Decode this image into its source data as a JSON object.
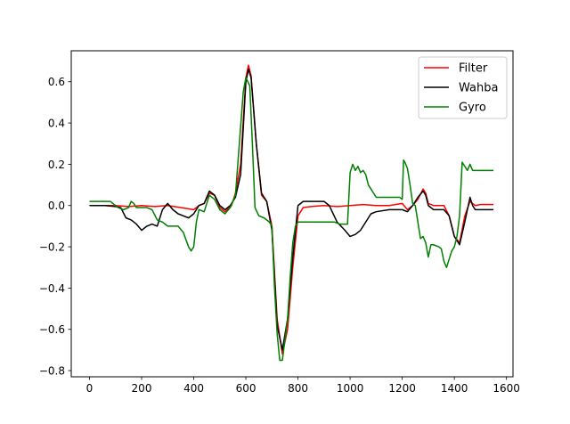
{
  "chart_data": {
    "type": "line",
    "title": "",
    "xlabel": "",
    "ylabel": "",
    "xlim": [
      -70,
      1625
    ],
    "ylim": [
      -0.83,
      0.75
    ],
    "xticks": [
      0,
      200,
      400,
      600,
      800,
      1000,
      1200,
      1400,
      1600
    ],
    "xtick_labels": [
      "0",
      "200",
      "400",
      "600",
      "800",
      "1000",
      "1200",
      "1400",
      "1600"
    ],
    "yticks": [
      -0.8,
      -0.6,
      -0.4,
      -0.2,
      0.0,
      0.2,
      0.4,
      0.6
    ],
    "ytick_labels": [
      "−0.8",
      "−0.6",
      "−0.4",
      "−0.2",
      "0.0",
      "0.2",
      "0.4",
      "0.6"
    ],
    "grid": false,
    "legend_position": "top-right",
    "series": [
      {
        "name": "Filter",
        "color": "#ff0000",
        "points": [
          [
            0,
            0.0
          ],
          [
            100,
            0.0
          ],
          [
            150,
            -0.005
          ],
          [
            200,
            0.0
          ],
          [
            250,
            -0.005
          ],
          [
            300,
            0.0
          ],
          [
            350,
            -0.01
          ],
          [
            400,
            -0.02
          ],
          [
            420,
            0.0
          ],
          [
            440,
            0.01
          ],
          [
            460,
            0.06
          ],
          [
            480,
            0.05
          ],
          [
            500,
            -0.01
          ],
          [
            520,
            -0.03
          ],
          [
            545,
            0.0
          ],
          [
            560,
            0.06
          ],
          [
            580,
            0.2
          ],
          [
            600,
            0.62
          ],
          [
            610,
            0.68
          ],
          [
            620,
            0.63
          ],
          [
            640,
            0.3
          ],
          [
            660,
            0.05
          ],
          [
            680,
            0.02
          ],
          [
            700,
            -0.1
          ],
          [
            720,
            -0.55
          ],
          [
            740,
            -0.72
          ],
          [
            760,
            -0.6
          ],
          [
            780,
            -0.3
          ],
          [
            800,
            -0.05
          ],
          [
            820,
            -0.01
          ],
          [
            850,
            -0.005
          ],
          [
            900,
            0.0
          ],
          [
            950,
            -0.005
          ],
          [
            1000,
            0.0
          ],
          [
            1050,
            0.005
          ],
          [
            1100,
            0.0
          ],
          [
            1150,
            0.0
          ],
          [
            1200,
            0.01
          ],
          [
            1220,
            -0.02
          ],
          [
            1240,
            0.0
          ],
          [
            1260,
            0.03
          ],
          [
            1280,
            0.08
          ],
          [
            1290,
            0.06
          ],
          [
            1300,
            0.01
          ],
          [
            1320,
            0.0
          ],
          [
            1340,
            0.0
          ],
          [
            1360,
            0.0
          ],
          [
            1380,
            -0.05
          ],
          [
            1400,
            -0.15
          ],
          [
            1420,
            -0.18
          ],
          [
            1440,
            -0.05
          ],
          [
            1460,
            0.02
          ],
          [
            1480,
            0.0
          ],
          [
            1500,
            0.005
          ],
          [
            1550,
            0.005
          ]
        ]
      },
      {
        "name": "Wahba",
        "color": "#000000",
        "points": [
          [
            0,
            0.0
          ],
          [
            60,
            0.0
          ],
          [
            100,
            -0.005
          ],
          [
            120,
            -0.01
          ],
          [
            140,
            -0.06
          ],
          [
            160,
            -0.07
          ],
          [
            180,
            -0.09
          ],
          [
            200,
            -0.12
          ],
          [
            220,
            -0.1
          ],
          [
            240,
            -0.09
          ],
          [
            260,
            -0.1
          ],
          [
            280,
            -0.02
          ],
          [
            300,
            0.01
          ],
          [
            320,
            -0.02
          ],
          [
            340,
            -0.04
          ],
          [
            360,
            -0.05
          ],
          [
            380,
            -0.06
          ],
          [
            400,
            -0.04
          ],
          [
            420,
            0.0
          ],
          [
            440,
            0.01
          ],
          [
            460,
            0.07
          ],
          [
            480,
            0.05
          ],
          [
            500,
            0.0
          ],
          [
            520,
            -0.02
          ],
          [
            540,
            0.0
          ],
          [
            560,
            0.04
          ],
          [
            580,
            0.15
          ],
          [
            600,
            0.6
          ],
          [
            610,
            0.66
          ],
          [
            620,
            0.62
          ],
          [
            640,
            0.3
          ],
          [
            660,
            0.06
          ],
          [
            680,
            0.02
          ],
          [
            700,
            -0.12
          ],
          [
            720,
            -0.58
          ],
          [
            740,
            -0.7
          ],
          [
            760,
            -0.55
          ],
          [
            780,
            -0.25
          ],
          [
            800,
            0.0
          ],
          [
            820,
            0.02
          ],
          [
            850,
            0.02
          ],
          [
            880,
            0.02
          ],
          [
            900,
            0.02
          ],
          [
            920,
            0.0
          ],
          [
            950,
            -0.08
          ],
          [
            980,
            -0.12
          ],
          [
            1000,
            -0.15
          ],
          [
            1020,
            -0.14
          ],
          [
            1040,
            -0.12
          ],
          [
            1060,
            -0.08
          ],
          [
            1080,
            -0.04
          ],
          [
            1100,
            -0.03
          ],
          [
            1150,
            -0.02
          ],
          [
            1200,
            -0.02
          ],
          [
            1220,
            -0.03
          ],
          [
            1240,
            0.0
          ],
          [
            1260,
            0.04
          ],
          [
            1280,
            0.07
          ],
          [
            1290,
            0.05
          ],
          [
            1300,
            0.0
          ],
          [
            1320,
            -0.02
          ],
          [
            1340,
            -0.02
          ],
          [
            1360,
            -0.02
          ],
          [
            1380,
            -0.05
          ],
          [
            1400,
            -0.15
          ],
          [
            1420,
            -0.19
          ],
          [
            1440,
            -0.08
          ],
          [
            1460,
            0.04
          ],
          [
            1470,
            0.0
          ],
          [
            1480,
            -0.02
          ],
          [
            1500,
            -0.02
          ],
          [
            1550,
            -0.02
          ]
        ]
      },
      {
        "name": "Gyro",
        "color": "#008000",
        "points": [
          [
            0,
            0.02
          ],
          [
            80,
            0.02
          ],
          [
            90,
            0.01
          ],
          [
            110,
            -0.01
          ],
          [
            130,
            -0.02
          ],
          [
            150,
            -0.01
          ],
          [
            160,
            0.02
          ],
          [
            170,
            0.01
          ],
          [
            180,
            -0.01
          ],
          [
            200,
            -0.01
          ],
          [
            220,
            -0.01
          ],
          [
            240,
            -0.02
          ],
          [
            260,
            -0.07
          ],
          [
            280,
            -0.08
          ],
          [
            300,
            -0.1
          ],
          [
            320,
            -0.1
          ],
          [
            340,
            -0.1
          ],
          [
            360,
            -0.13
          ],
          [
            380,
            -0.2
          ],
          [
            390,
            -0.22
          ],
          [
            400,
            -0.2
          ],
          [
            410,
            -0.08
          ],
          [
            420,
            -0.02
          ],
          [
            440,
            -0.03
          ],
          [
            460,
            0.05
          ],
          [
            480,
            0.03
          ],
          [
            500,
            -0.02
          ],
          [
            520,
            -0.04
          ],
          [
            540,
            -0.01
          ],
          [
            560,
            0.05
          ],
          [
            575,
            0.3
          ],
          [
            590,
            0.55
          ],
          [
            600,
            0.62
          ],
          [
            615,
            0.58
          ],
          [
            625,
            0.3
          ],
          [
            635,
            -0.01
          ],
          [
            650,
            -0.05
          ],
          [
            670,
            -0.06
          ],
          [
            690,
            -0.08
          ],
          [
            700,
            -0.1
          ],
          [
            710,
            -0.4
          ],
          [
            720,
            -0.62
          ],
          [
            730,
            -0.75
          ],
          [
            740,
            -0.75
          ],
          [
            750,
            -0.65
          ],
          [
            760,
            -0.55
          ],
          [
            770,
            -0.35
          ],
          [
            780,
            -0.18
          ],
          [
            790,
            -0.1
          ],
          [
            800,
            -0.08
          ],
          [
            850,
            -0.08
          ],
          [
            900,
            -0.08
          ],
          [
            940,
            -0.08
          ],
          [
            960,
            -0.09
          ],
          [
            980,
            -0.09
          ],
          [
            990,
            -0.09
          ],
          [
            1000,
            0.16
          ],
          [
            1010,
            0.2
          ],
          [
            1020,
            0.17
          ],
          [
            1030,
            0.19
          ],
          [
            1040,
            0.16
          ],
          [
            1050,
            0.17
          ],
          [
            1060,
            0.15
          ],
          [
            1070,
            0.1
          ],
          [
            1080,
            0.08
          ],
          [
            1090,
            0.06
          ],
          [
            1100,
            0.04
          ],
          [
            1150,
            0.04
          ],
          [
            1190,
            0.04
          ],
          [
            1200,
            0.03
          ],
          [
            1205,
            0.22
          ],
          [
            1210,
            0.21
          ],
          [
            1220,
            0.18
          ],
          [
            1230,
            0.1
          ],
          [
            1240,
            0.01
          ],
          [
            1250,
            0.0
          ],
          [
            1260,
            -0.08
          ],
          [
            1270,
            -0.16
          ],
          [
            1280,
            -0.15
          ],
          [
            1290,
            -0.18
          ],
          [
            1300,
            -0.25
          ],
          [
            1310,
            -0.19
          ],
          [
            1320,
            -0.19
          ],
          [
            1340,
            -0.2
          ],
          [
            1350,
            -0.21
          ],
          [
            1360,
            -0.27
          ],
          [
            1370,
            -0.3
          ],
          [
            1380,
            -0.26
          ],
          [
            1390,
            -0.22
          ],
          [
            1400,
            -0.2
          ],
          [
            1410,
            -0.15
          ],
          [
            1420,
            -0.05
          ],
          [
            1430,
            0.21
          ],
          [
            1440,
            0.19
          ],
          [
            1450,
            0.17
          ],
          [
            1460,
            0.2
          ],
          [
            1470,
            0.17
          ],
          [
            1500,
            0.17
          ],
          [
            1550,
            0.17
          ]
        ]
      }
    ]
  }
}
